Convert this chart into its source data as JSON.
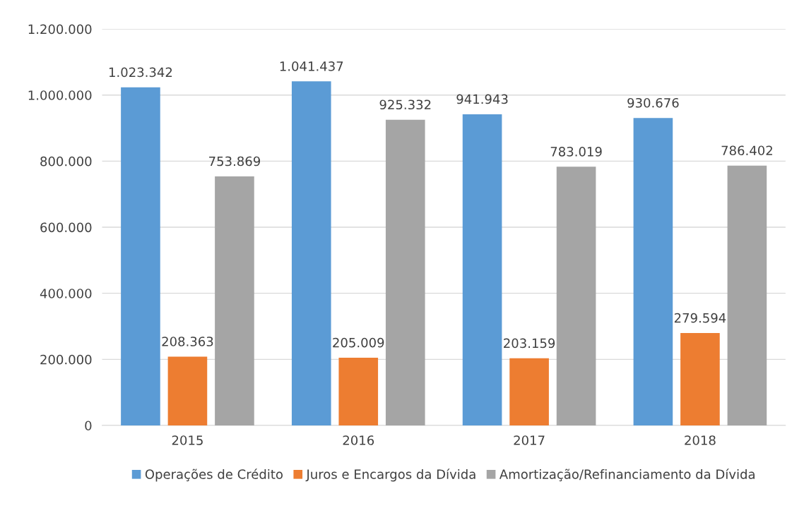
{
  "chart_data": {
    "type": "bar",
    "categories": [
      "2015",
      "2016",
      "2017",
      "2018"
    ],
    "series": [
      {
        "name": "Operações de Crédito",
        "color": "#5b9bd5",
        "values": [
          1023342,
          1041437,
          941943,
          930676
        ],
        "value_labels": [
          "1.023.342",
          "1.041.437",
          "941.943",
          "930.676"
        ]
      },
      {
        "name": "Juros e Encargos da Dívida",
        "color": "#ed7d31",
        "values": [
          208363,
          205009,
          203159,
          279594
        ],
        "value_labels": [
          "208.363",
          "205.009",
          "203.159",
          "279.594"
        ]
      },
      {
        "name": "Amortização/Refinanciamento da Dívida",
        "color": "#a5a5a5",
        "values": [
          753869,
          925332,
          783019,
          786402
        ],
        "value_labels": [
          "753.869",
          "925.332",
          "783.019",
          "786.402"
        ]
      }
    ],
    "ylim": [
      0,
      1200000
    ],
    "yticks": [
      {
        "value": 0,
        "label": "0"
      },
      {
        "value": 200000,
        "label": "200.000"
      },
      {
        "value": 400000,
        "label": "400.000"
      },
      {
        "value": 600000,
        "label": "600.000"
      },
      {
        "value": 800000,
        "label": "800.000"
      },
      {
        "value": 1000000,
        "label": "1.000.000"
      },
      {
        "value": 1200000,
        "label": "1.200.000"
      }
    ],
    "grid": "y",
    "legend": "bottom"
  }
}
